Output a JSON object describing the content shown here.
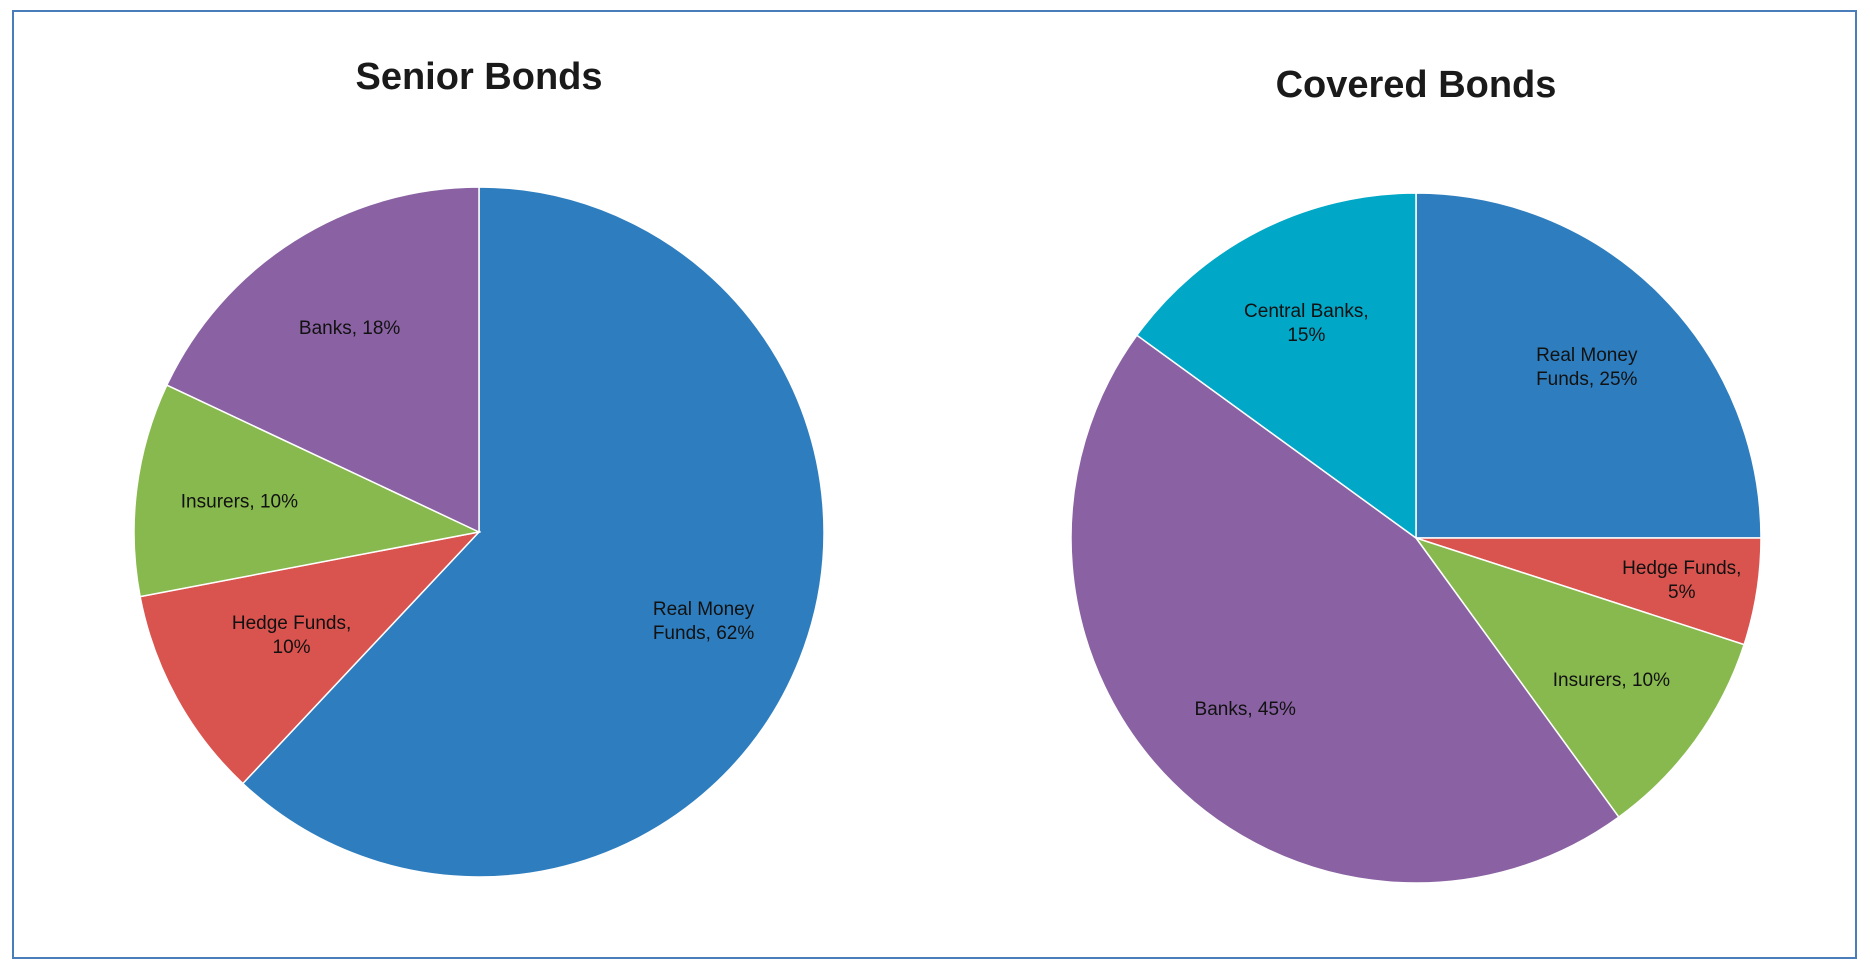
{
  "chart_data": [
    {
      "type": "pie",
      "title": "Senior Bonds",
      "slices": [
        {
          "label": "Real Money Funds",
          "value": 62,
          "display": "Real Money|Funds, 62%",
          "color": "#2e7ebf"
        },
        {
          "label": "Hedge Funds",
          "value": 10,
          "display": "Hedge Funds,|10%",
          "color": "#d9534f"
        },
        {
          "label": "Insurers",
          "value": 10,
          "display": "Insurers, 10%",
          "color": "#88b94e"
        },
        {
          "label": "Banks",
          "value": 18,
          "display": "Banks, 18%",
          "color": "#8a62a3"
        }
      ]
    },
    {
      "type": "pie",
      "title": "Covered Bonds",
      "slices": [
        {
          "label": "Real Money Funds",
          "value": 25,
          "display": "Real Money|Funds, 25%",
          "color": "#2e7ebf"
        },
        {
          "label": "Hedge Funds",
          "value": 5,
          "display": "Hedge Funds,|5%",
          "color": "#d9534f"
        },
        {
          "label": "Insurers",
          "value": 10,
          "display": "Insurers, 10%",
          "color": "#88b94e"
        },
        {
          "label": "Banks",
          "value": 45,
          "display": "Banks, 45%",
          "color": "#8a62a3"
        },
        {
          "label": "Central Banks",
          "value": 15,
          "display": "Central Banks,|15%",
          "color": "#00a7c6"
        }
      ]
    }
  ]
}
